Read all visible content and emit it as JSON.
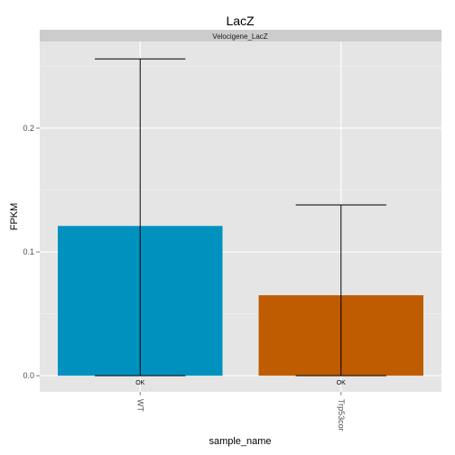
{
  "chart_data": {
    "type": "bar",
    "title": "LacZ",
    "facet_label": "Velocigene_LacZ",
    "xlabel": "sample_name",
    "ylabel": "FPKM",
    "categories": [
      "WT",
      "Trp53cor"
    ],
    "values": [
      0.121,
      0.065
    ],
    "error_high": [
      0.256,
      0.138
    ],
    "error_low": [
      0.0,
      0.0
    ],
    "bar_labels": [
      "OK",
      "OK"
    ],
    "colors": [
      "#0091BF",
      "#BF5B00"
    ],
    "ylim": [
      -0.013,
      0.27
    ],
    "yticks": [
      0.0,
      0.1,
      0.2
    ],
    "ytick_labels": [
      "0.0",
      "0.1",
      "0.2"
    ],
    "grid": true,
    "legend": "none"
  }
}
